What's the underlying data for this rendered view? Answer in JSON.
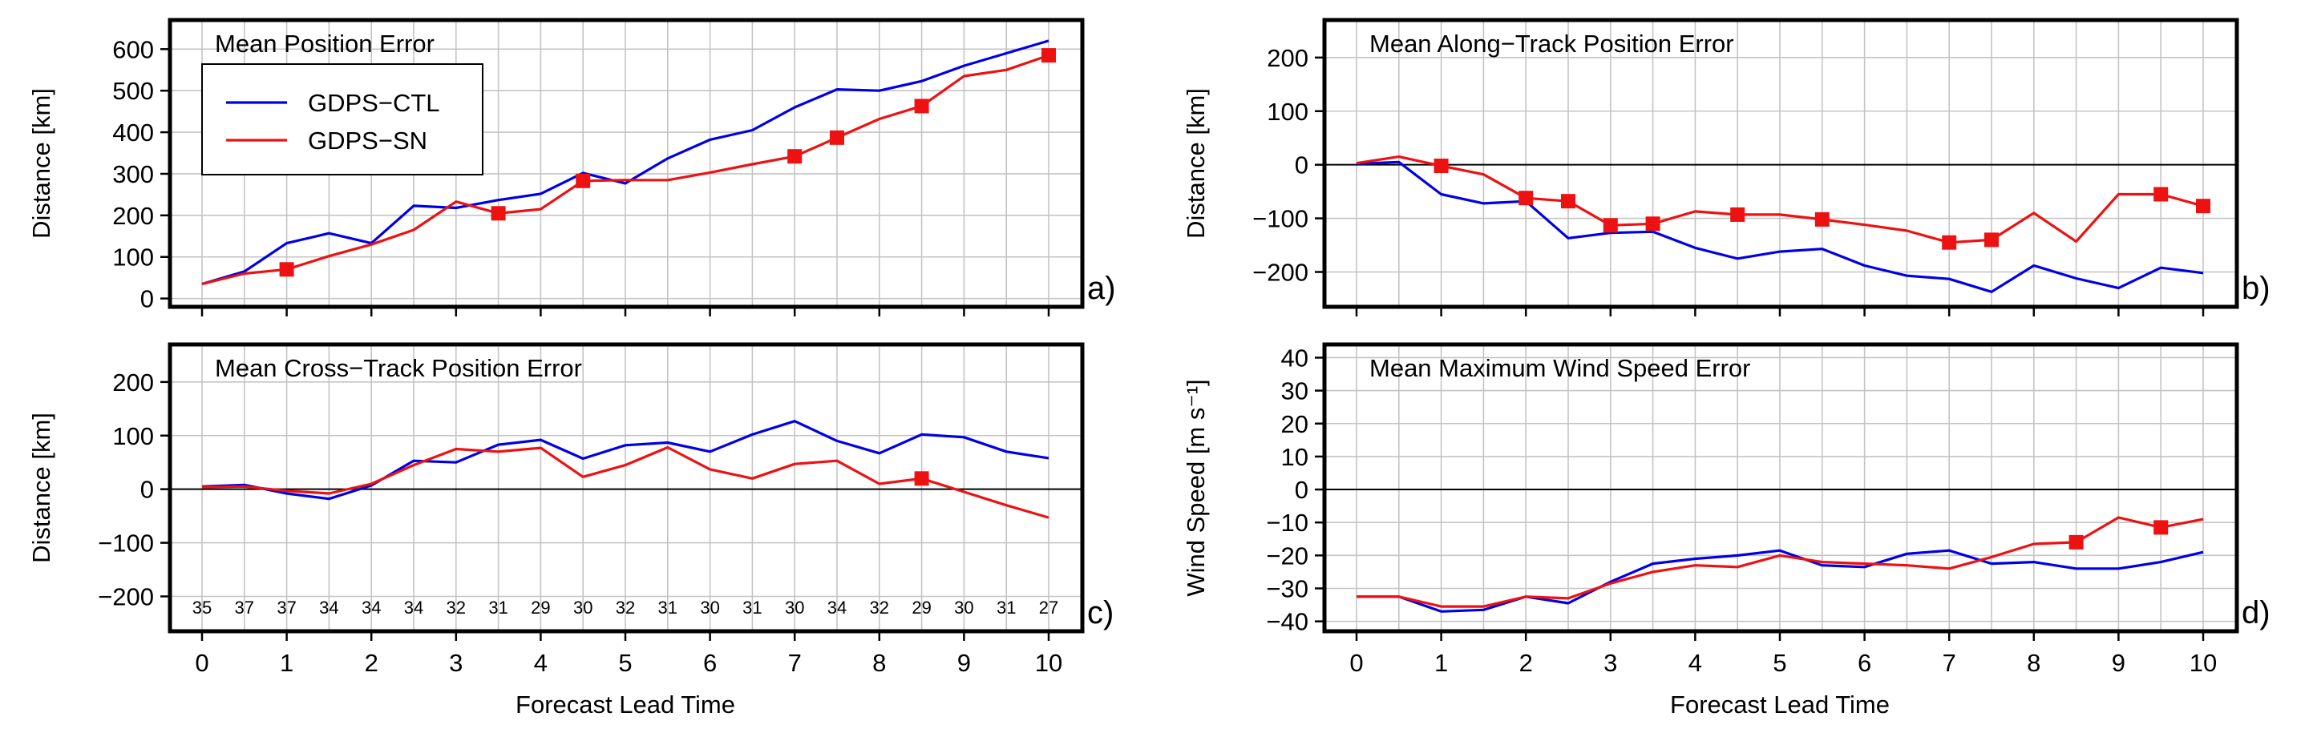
{
  "colors": {
    "ctl": "#0000e6",
    "sn": "#ee1111"
  },
  "legend": {
    "ctl": "GDPS−CTL",
    "sn": "GDPS−SN"
  },
  "chart_data": [
    {
      "id": "a",
      "type": "line",
      "letter": "a)",
      "title": "Mean Position Error",
      "ylabel": "Distance [km]",
      "xlabel": "",
      "xlim": [
        0,
        10
      ],
      "ylim": [
        -20,
        670
      ],
      "yticks": [
        0,
        100,
        200,
        300,
        400,
        500,
        600
      ],
      "xticks": [],
      "grid": true,
      "zero_line": false,
      "legend": "top-left",
      "x": [
        0,
        0.5,
        1,
        1.5,
        2,
        2.5,
        3,
        3.5,
        4,
        4.5,
        5,
        5.5,
        6,
        6.5,
        7,
        7.5,
        8,
        8.5,
        9,
        9.5,
        10
      ],
      "series": [
        {
          "name": "GDPS−CTL",
          "values": [
            35,
            65,
            133,
            157,
            133,
            223,
            218,
            237,
            252,
            302,
            277,
            337,
            382,
            405,
            460,
            503,
            500,
            523,
            560,
            590,
            620
          ],
          "markers": []
        },
        {
          "name": "GDPS−SN",
          "values": [
            35,
            60,
            70,
            102,
            130,
            165,
            233,
            205,
            215,
            283,
            285,
            285,
            303,
            323,
            342,
            387,
            432,
            463,
            535,
            550,
            585
          ],
          "markers": [
            1,
            3.5,
            4.5,
            7,
            7.5,
            8.5,
            10
          ]
        }
      ]
    },
    {
      "id": "b",
      "type": "line",
      "letter": "b)",
      "title": "Mean Along−Track Position Error",
      "ylabel": "Distance [km]",
      "xlabel": "",
      "xlim": [
        0,
        10
      ],
      "ylim": [
        -265,
        270
      ],
      "yticks": [
        -200,
        -100,
        0,
        100,
        200
      ],
      "xticks": [],
      "grid": true,
      "zero_line": true,
      "x": [
        0,
        0.5,
        1,
        1.5,
        2,
        2.5,
        3,
        3.5,
        4,
        4.5,
        5,
        5.5,
        6,
        6.5,
        7,
        7.5,
        8,
        8.5,
        9,
        9.5,
        10
      ],
      "series": [
        {
          "name": "GDPS−CTL",
          "values": [
            2,
            5,
            -55,
            -72,
            -68,
            -137,
            -127,
            -125,
            -155,
            -175,
            -162,
            -157,
            -188,
            -207,
            -213,
            -237,
            -188,
            -212,
            -230,
            -192,
            -202
          ],
          "markers": []
        },
        {
          "name": "GDPS−SN",
          "values": [
            3,
            15,
            -2,
            -18,
            -62,
            -68,
            -113,
            -110,
            -87,
            -93,
            -93,
            -102,
            -112,
            -123,
            -145,
            -140,
            -90,
            -143,
            -55,
            -55,
            -77
          ],
          "markers": [
            1,
            2,
            2.5,
            3,
            3.5,
            4.5,
            5.5,
            7,
            7.5,
            9.5,
            10
          ]
        }
      ]
    },
    {
      "id": "c",
      "type": "line",
      "letter": "c)",
      "title": "Mean Cross−Track Position Error",
      "ylabel": "Distance [km]",
      "xlabel": "Forecast Lead Time",
      "xlim": [
        0,
        10
      ],
      "ylim": [
        -265,
        270
      ],
      "yticks": [
        -200,
        -100,
        0,
        100,
        200
      ],
      "xticks": [
        0,
        1,
        2,
        3,
        4,
        5,
        6,
        7,
        8,
        9,
        10
      ],
      "grid": true,
      "zero_line": true,
      "counts": [
        "35",
        "37",
        "37",
        "34",
        "34",
        "34",
        "32",
        "31",
        "29",
        "30",
        "32",
        "31",
        "30",
        "31",
        "30",
        "34",
        "32",
        "29",
        "30",
        "31",
        "27"
      ],
      "x": [
        0,
        0.5,
        1,
        1.5,
        2,
        2.5,
        3,
        3.5,
        4,
        4.5,
        5,
        5.5,
        6,
        6.5,
        7,
        7.5,
        8,
        8.5,
        9,
        9.5,
        10
      ],
      "series": [
        {
          "name": "GDPS−CTL",
          "values": [
            5,
            8,
            -8,
            -18,
            7,
            53,
            50,
            83,
            92,
            57,
            82,
            87,
            70,
            102,
            127,
            90,
            67,
            102,
            97,
            70,
            58
          ],
          "markers": []
        },
        {
          "name": "GDPS−SN",
          "values": [
            4,
            5,
            -3,
            -8,
            10,
            45,
            75,
            70,
            77,
            23,
            45,
            78,
            37,
            20,
            47,
            53,
            10,
            20,
            -5,
            -30,
            -53
          ],
          "markers": [
            8.5
          ]
        }
      ]
    },
    {
      "id": "d",
      "type": "line",
      "letter": "d)",
      "title": "Mean Maximum Wind Speed Error",
      "ylabel": "Wind Speed [m s⁻¹]",
      "xlabel": "Forecast Lead Time",
      "xlim": [
        0,
        10
      ],
      "ylim": [
        -43,
        44
      ],
      "yticks": [
        -40,
        -30,
        -20,
        -10,
        0,
        10,
        20,
        30,
        40
      ],
      "xticks": [
        0,
        1,
        2,
        3,
        4,
        5,
        6,
        7,
        8,
        9,
        10
      ],
      "grid": true,
      "zero_line": true,
      "x": [
        0,
        0.5,
        1,
        1.5,
        2,
        2.5,
        3,
        3.5,
        4,
        4.5,
        5,
        5.5,
        6,
        6.5,
        7,
        7.5,
        8,
        8.5,
        9,
        9.5,
        10
      ],
      "series": [
        {
          "name": "GDPS−CTL",
          "values": [
            -32.5,
            -32.5,
            -37,
            -36.5,
            -32.5,
            -34.5,
            -28,
            -22.5,
            -21,
            -20,
            -18.5,
            -23,
            -23.5,
            -19.5,
            -18.5,
            -22.5,
            -22,
            -24,
            -24,
            -22,
            -19
          ],
          "markers": []
        },
        {
          "name": "GDPS−SN",
          "values": [
            -32.5,
            -32.5,
            -35.5,
            -35.5,
            -32.5,
            -33,
            -28.5,
            -25,
            -23,
            -23.5,
            -20,
            -22,
            -22.5,
            -23,
            -24,
            -20.5,
            -16.5,
            -16,
            -8.5,
            -11.5,
            -9
          ],
          "markers": [
            8.5,
            9.5
          ]
        }
      ]
    }
  ]
}
